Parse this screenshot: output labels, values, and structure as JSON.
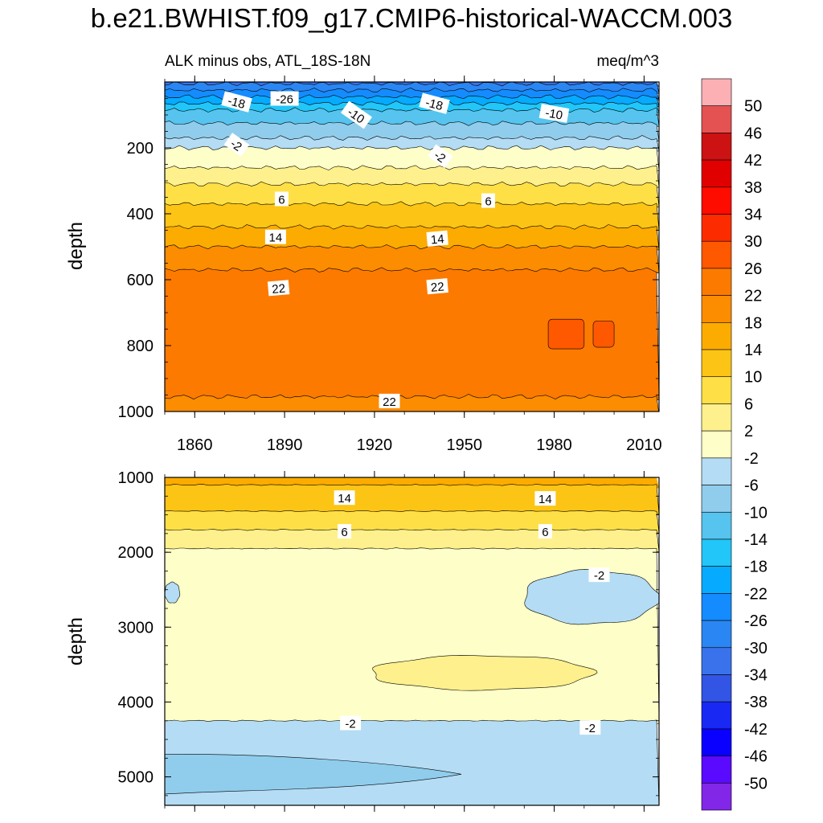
{
  "title": "b.e21.BWHIST.f09_g17.CMIP6-historical-WACCM.003",
  "colors": {
    "levels": [
      -50,
      -46,
      -42,
      -38,
      -34,
      -30,
      -26,
      -22,
      -18,
      -14,
      -10,
      -6,
      -2,
      2,
      6,
      10,
      14,
      18,
      22,
      26,
      30,
      34,
      38,
      42,
      46,
      50
    ],
    "palette": [
      "#8226e8",
      "#5a0aff",
      "#0a00ff",
      "#1a28f4",
      "#3255e6",
      "#3a72ec",
      "#2a86f2",
      "#148cff",
      "#06aaff",
      "#22c6f8",
      "#56c4ee",
      "#90cdec",
      "#b4dcf4",
      "#fefec8",
      "#fef08c",
      "#fee046",
      "#fcc414",
      "#fcac00",
      "#fc8c00",
      "#fc7a00",
      "#fe5800",
      "#fd2c00",
      "#fe0c00",
      "#e00000",
      "#cc1212",
      "#e45252",
      "#fcb0b4"
    ]
  },
  "chart_data": [
    {
      "type": "contour",
      "panel": "upper",
      "subtitle_left": "ALK minus obs, ATL_18S-18N",
      "subtitle_right": "meq/m^3",
      "ylabel": "depth",
      "xlim": [
        1850,
        2015
      ],
      "ylim": [
        0,
        1000
      ],
      "y_inverted": true,
      "xticks": [
        1860,
        1890,
        1920,
        1950,
        1980,
        2010
      ],
      "xticklabels": [
        "1860",
        "1890",
        "1920",
        "1950",
        "1980",
        "2010"
      ],
      "yticks": [
        200,
        400,
        600,
        800,
        1000
      ],
      "yticklabels": [
        "200",
        "400",
        "600",
        "800",
        "1000"
      ],
      "bands": [
        {
          "top": 0,
          "bottom": 5,
          "value": -32
        },
        {
          "top": 5,
          "bottom": 25,
          "value": -28
        },
        {
          "top": 25,
          "bottom": 45,
          "value": -24
        },
        {
          "top": 45,
          "bottom": 65,
          "value": -20
        },
        {
          "top": 65,
          "bottom": 85,
          "value": -16
        },
        {
          "top": 85,
          "bottom": 125,
          "value": -12
        },
        {
          "top": 125,
          "bottom": 170,
          "value": -8
        },
        {
          "top": 170,
          "bottom": 200,
          "value": -4
        },
        {
          "top": 200,
          "bottom": 260,
          "value": 0
        },
        {
          "top": 260,
          "bottom": 310,
          "value": 4
        },
        {
          "top": 310,
          "bottom": 370,
          "value": 8
        },
        {
          "top": 370,
          "bottom": 440,
          "value": 12
        },
        {
          "top": 440,
          "bottom": 500,
          "value": 16
        },
        {
          "top": 500,
          "bottom": 570,
          "value": 20
        },
        {
          "top": 570,
          "bottom": 955,
          "value": 24
        },
        {
          "top": 955,
          "bottom": 1000,
          "value": 20
        }
      ],
      "patches": [
        {
          "x0": 1978,
          "x1": 1990,
          "top": 720,
          "bottom": 810,
          "value": 28
        },
        {
          "x0": 1993,
          "x1": 2000,
          "top": 725,
          "bottom": 805,
          "value": 28
        }
      ],
      "contour_labels": [
        {
          "text": "-26",
          "x": 1890,
          "y": 50,
          "angle": 0
        },
        {
          "text": "-18",
          "x": 1874,
          "y": 60,
          "angle": 15
        },
        {
          "text": "-10",
          "x": 1914,
          "y": 100,
          "angle": 35
        },
        {
          "text": "-18",
          "x": 1940,
          "y": 65,
          "angle": 15
        },
        {
          "text": "-10",
          "x": 1980,
          "y": 95,
          "angle": 10
        },
        {
          "text": "-2",
          "x": 1874,
          "y": 190,
          "angle": 35
        },
        {
          "text": "-2",
          "x": 1942,
          "y": 225,
          "angle": 35
        },
        {
          "text": "6",
          "x": 1889,
          "y": 355,
          "angle": 0
        },
        {
          "text": "6",
          "x": 1958,
          "y": 360,
          "angle": 0
        },
        {
          "text": "14",
          "x": 1887,
          "y": 470,
          "angle": 0
        },
        {
          "text": "14",
          "x": 1941,
          "y": 475,
          "angle": -5
        },
        {
          "text": "22",
          "x": 1888,
          "y": 625,
          "angle": -5
        },
        {
          "text": "22",
          "x": 1941,
          "y": 620,
          "angle": -5
        },
        {
          "text": "22",
          "x": 1925,
          "y": 968,
          "angle": 0
        }
      ]
    },
    {
      "type": "contour",
      "panel": "lower",
      "ylabel": "depth",
      "xlim": [
        1850,
        2015
      ],
      "ylim": [
        1000,
        5380
      ],
      "y_inverted": true,
      "yticks": [
        1000,
        2000,
        3000,
        4000,
        5000
      ],
      "yticklabels": [
        "1000",
        "2000",
        "3000",
        "4000",
        "5000"
      ],
      "bands": [
        {
          "top": 1000,
          "bottom": 1100,
          "value": 16
        },
        {
          "top": 1100,
          "bottom": 1450,
          "value": 12
        },
        {
          "top": 1450,
          "bottom": 1700,
          "value": 8
        },
        {
          "top": 1700,
          "bottom": 1950,
          "value": 4
        },
        {
          "top": 1950,
          "bottom": 4250,
          "value": 0
        },
        {
          "top": 4250,
          "bottom": 5380,
          "value": -4
        }
      ],
      "patches": [
        {
          "shape": "blob",
          "x0": 1850,
          "x1": 1855,
          "top": 2400,
          "bottom": 2680,
          "value": -4
        },
        {
          "shape": "blob",
          "x0": 1970,
          "x1": 2015,
          "top": 2240,
          "bottom": 2960,
          "value": -4
        },
        {
          "shape": "blob",
          "x0": 1919,
          "x1": 1993,
          "top": 3380,
          "bottom": 3840,
          "value": 4
        },
        {
          "shape": "wedge",
          "x0": 1850,
          "x1": 1949,
          "top": 4700,
          "bottom": 5230,
          "value": -8
        }
      ],
      "contour_labels": [
        {
          "text": "14",
          "x": 1910,
          "y": 1270,
          "angle": 0
        },
        {
          "text": "14",
          "x": 1977,
          "y": 1280,
          "angle": 0
        },
        {
          "text": "6",
          "x": 1910,
          "y": 1720,
          "angle": 0
        },
        {
          "text": "6",
          "x": 1977,
          "y": 1720,
          "angle": 0
        },
        {
          "text": "-2",
          "x": 1912,
          "y": 4280,
          "angle": 0
        },
        {
          "text": "-2",
          "x": 1995,
          "y": 2300,
          "angle": 0
        },
        {
          "text": "-2",
          "x": 1992,
          "y": 4340,
          "angle": 0
        }
      ]
    }
  ],
  "colorbar_labels": [
    "50",
    "46",
    "42",
    "38",
    "34",
    "30",
    "26",
    "22",
    "18",
    "14",
    "10",
    "6",
    "2",
    "-2",
    "-6",
    "-10",
    "-14",
    "-18",
    "-22",
    "-26",
    "-30",
    "-34",
    "-38",
    "-42",
    "-46",
    "-50"
  ]
}
